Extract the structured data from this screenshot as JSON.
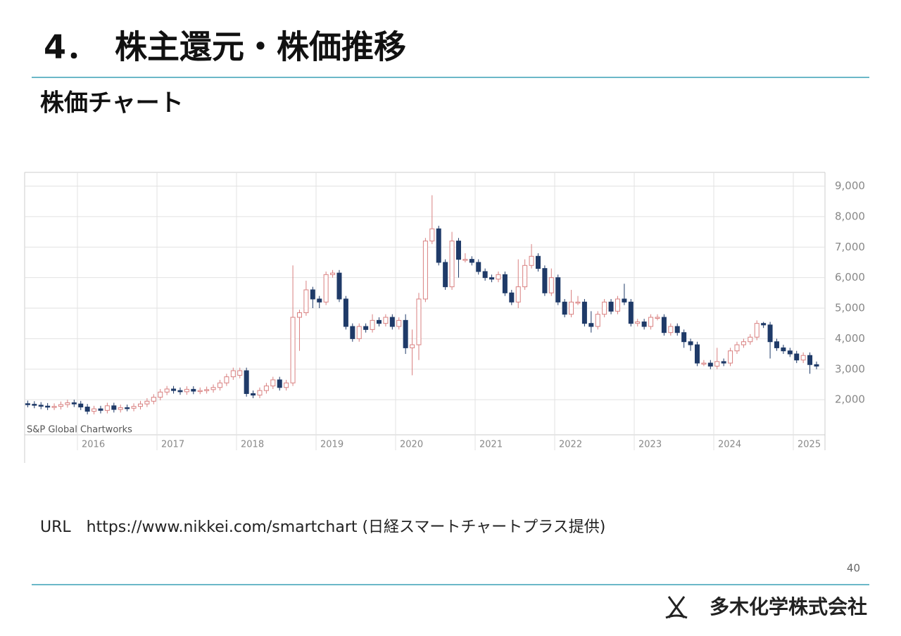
{
  "header": {
    "title": "4．　株主還元・株価推移",
    "subtitle": "株価チャート"
  },
  "chart_data": {
    "type": "candlestick",
    "source": "S&P Global Chartworks",
    "categories": [
      null,
      null,
      null,
      null,
      null,
      null,
      null,
      null,
      "2016",
      null,
      null,
      null,
      null,
      null,
      null,
      null,
      null,
      null,
      null,
      null,
      "2017",
      null,
      null,
      null,
      null,
      null,
      null,
      null,
      null,
      null,
      null,
      null,
      "2018",
      null,
      null,
      null,
      null,
      null,
      null,
      null,
      null,
      null,
      null,
      null,
      "2019",
      null,
      null,
      null,
      null,
      null,
      null,
      null,
      null,
      null,
      null,
      null,
      "2020",
      null,
      null,
      null,
      null,
      null,
      null,
      null,
      null,
      null,
      null,
      null,
      "2021",
      null,
      null,
      null,
      null,
      null,
      null,
      null,
      null,
      null,
      null,
      null,
      "2022",
      null,
      null,
      null,
      null,
      null,
      null,
      null,
      null,
      null,
      null,
      null,
      "2023",
      null,
      null,
      null,
      null,
      null,
      null,
      null,
      null,
      null,
      null,
      null,
      "2024",
      null,
      null,
      null,
      null,
      null,
      null,
      null,
      null,
      null,
      null,
      null,
      "2025",
      null,
      null,
      null
    ],
    "open": [
      1870,
      1850,
      1820,
      1790,
      1760,
      1780,
      1840,
      1900,
      1860,
      1760,
      1620,
      1700,
      1650,
      1800,
      1680,
      1740,
      1720,
      1780,
      1860,
      1950,
      2080,
      2250,
      2350,
      2300,
      2260,
      2340,
      2280,
      2300,
      2330,
      2400,
      2550,
      2750,
      2800,
      2950,
      2200,
      2150,
      2300,
      2450,
      2650,
      2400,
      2550,
      4700,
      4850,
      5600,
      5300,
      5200,
      6100,
      6150,
      5300,
      4400,
      4000,
      4400,
      4300,
      4600,
      4500,
      4700,
      4400,
      4600,
      3700,
      3800,
      5300,
      7200,
      7600,
      6500,
      5700,
      7200,
      6600,
      6600,
      6500,
      6200,
      6000,
      5950,
      6100,
      5500,
      5200,
      5700,
      6400,
      6700,
      6300,
      5500,
      6000,
      5200,
      4800,
      5200,
      5200,
      4500,
      4400,
      4800,
      5200,
      4900,
      5300,
      5200,
      4500,
      4550,
      4400,
      4700,
      4700,
      4200,
      4400,
      4200,
      3900,
      3800,
      3200,
      3200,
      3100,
      3250,
      3200,
      3600,
      3800,
      3900,
      4050,
      4500,
      4450,
      3900,
      3700,
      3600,
      3500,
      3300,
      3450,
      3150
    ],
    "high": [
      1970,
      1950,
      1920,
      1890,
      1880,
      1940,
      2000,
      2000,
      1960,
      1860,
      1800,
      1800,
      1900,
      1900,
      1840,
      1840,
      1880,
      1960,
      2050,
      2180,
      2350,
      2450,
      2450,
      2400,
      2440,
      2440,
      2400,
      2430,
      2500,
      2650,
      2850,
      3050,
      3050,
      3050,
      2300,
      2400,
      2550,
      2750,
      2750,
      2650,
      6400,
      4950,
      5900,
      5700,
      5400,
      6200,
      6250,
      6250,
      5400,
      4500,
      4500,
      4500,
      4800,
      4700,
      4800,
      4800,
      4700,
      4800,
      4300,
      5500,
      7300,
      8700,
      7700,
      6600,
      7500,
      7300,
      6800,
      6700,
      6600,
      6300,
      6100,
      6200,
      6200,
      5600,
      6600,
      6600,
      7100,
      6800,
      6400,
      6300,
      6100,
      5300,
      5600,
      5400,
      5300,
      4900,
      4900,
      5300,
      5300,
      5400,
      5800,
      5300,
      4650,
      4650,
      4800,
      4800,
      4800,
      4500,
      4500,
      4300,
      4000,
      3900,
      3300,
      3300,
      3700,
      3350,
      3700,
      3900,
      4000,
      4150,
      4600,
      4550,
      4550,
      4000,
      3800,
      3700,
      3600,
      3550,
      3550,
      3250
    ],
    "low": [
      1750,
      1720,
      1690,
      1660,
      1660,
      1680,
      1740,
      1760,
      1660,
      1520,
      1520,
      1550,
      1550,
      1580,
      1580,
      1620,
      1620,
      1680,
      1760,
      1850,
      1980,
      2150,
      2200,
      2160,
      2160,
      2180,
      2180,
      2200,
      2230,
      2300,
      2450,
      2650,
      2700,
      2100,
      2050,
      2050,
      2200,
      2350,
      2300,
      2300,
      2450,
      3600,
      4750,
      5000,
      5000,
      5100,
      6000,
      5200,
      4300,
      3900,
      3900,
      4200,
      4200,
      4400,
      4400,
      4300,
      4300,
      3500,
      2800,
      3300,
      5200,
      7100,
      6400,
      5600,
      5600,
      6000,
      6500,
      6400,
      6100,
      5900,
      5850,
      5850,
      5400,
      5100,
      5000,
      5600,
      6300,
      6200,
      5400,
      5400,
      5100,
      4700,
      4700,
      5100,
      4400,
      4200,
      4300,
      4700,
      4800,
      4800,
      5100,
      4400,
      4400,
      4300,
      4300,
      4600,
      4100,
      4100,
      4100,
      3700,
      3600,
      3100,
      3100,
      3000,
      3000,
      3100,
      3100,
      3500,
      3700,
      3800,
      3950,
      4350,
      3350,
      3600,
      3500,
      3400,
      3200,
      3200,
      2850,
      3000
    ],
    "close": [
      1850,
      1820,
      1790,
      1760,
      1780,
      1840,
      1900,
      1860,
      1760,
      1620,
      1700,
      1650,
      1800,
      1680,
      1740,
      1720,
      1780,
      1860,
      1950,
      2080,
      2250,
      2350,
      2300,
      2260,
      2340,
      2280,
      2300,
      2330,
      2400,
      2550,
      2750,
      2950,
      2950,
      2200,
      2150,
      2300,
      2450,
      2650,
      2400,
      2550,
      4700,
      4850,
      5600,
      5300,
      5200,
      6100,
      6150,
      5300,
      4400,
      4000,
      4400,
      4300,
      4600,
      4500,
      4700,
      4400,
      4600,
      3700,
      3800,
      5300,
      7200,
      7600,
      6500,
      5700,
      7200,
      6600,
      6600,
      6500,
      6200,
      6000,
      5950,
      6100,
      5500,
      5200,
      5700,
      6400,
      6700,
      6300,
      5500,
      6000,
      5200,
      4800,
      5200,
      5200,
      4500,
      4400,
      4800,
      5200,
      4900,
      5300,
      5200,
      4500,
      4550,
      4400,
      4700,
      4700,
      4200,
      4400,
      4200,
      3900,
      3800,
      3200,
      3200,
      3100,
      3250,
      3200,
      3600,
      3800,
      3900,
      4050,
      4500,
      4450,
      3900,
      3700,
      3600,
      3500,
      3300,
      3450,
      3150,
      3100
    ],
    "up_color": "#d98080",
    "down_color": "#1f3a68",
    "ylim": [
      850,
      9450
    ],
    "yticks": [
      {
        "value": 2000,
        "label": "2,000"
      },
      {
        "value": 3000,
        "label": "3,000"
      },
      {
        "value": 4000,
        "label": "4,000"
      },
      {
        "value": 5000,
        "label": "5,000"
      },
      {
        "value": 6000,
        "label": "6,000"
      },
      {
        "value": 7000,
        "label": "7,000"
      },
      {
        "value": 8000,
        "label": "8,000"
      },
      {
        "value": 9000,
        "label": "9,000"
      }
    ],
    "grid": true
  },
  "footer": {
    "source_url": "URL　https://www.nikkei.com/smartchart (日経スマートチャートプラス提供)",
    "page_number": "40",
    "company": "多木化学株式会社"
  }
}
